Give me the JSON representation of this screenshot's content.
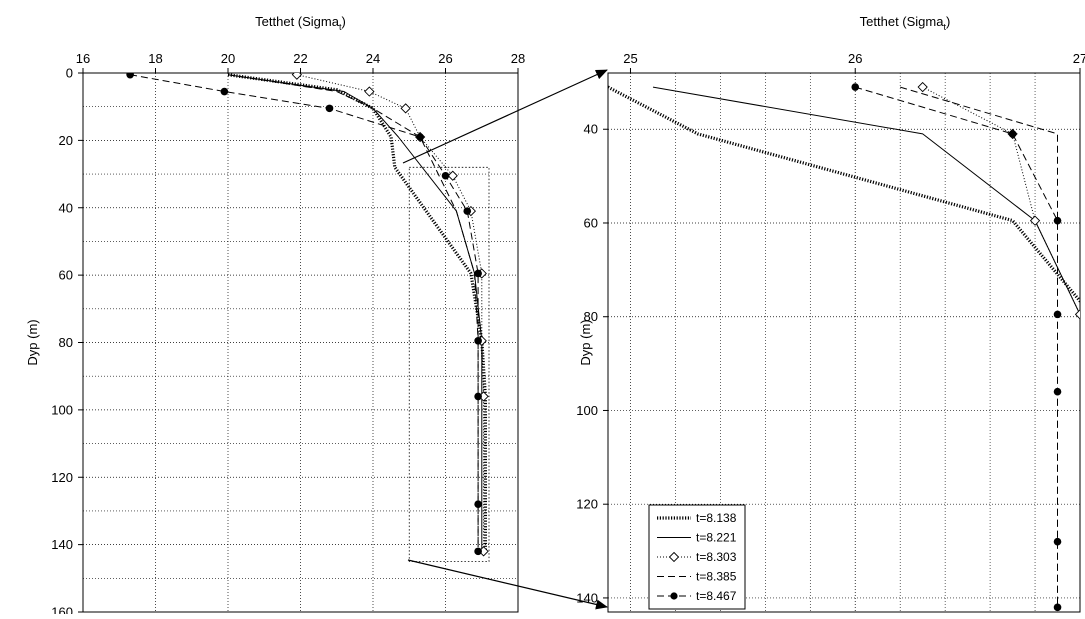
{
  "chart_data": [
    {
      "type": "line",
      "panel": "overview",
      "xlabel": "Tetthet (Sigma",
      "xlabel_sub": "t",
      "xlabel_close": ")",
      "ylabel": "Dyp (m)",
      "xlim": [
        16,
        28
      ],
      "ylim": [
        160,
        0
      ],
      "xticks": [
        16,
        18,
        20,
        22,
        24,
        26,
        28
      ],
      "yticks": [
        0,
        20,
        40,
        60,
        80,
        100,
        120,
        140,
        160
      ],
      "x_axis_position": "top",
      "grid": true,
      "series": [
        {
          "name": "t=8.138",
          "style": "thick-dotted",
          "x": [
            20.0,
            23.0,
            24.0,
            24.5,
            24.6,
            26.7,
            27.0,
            27.1,
            27.1,
            27.1
          ],
          "y": [
            0.5,
            5,
            10.5,
            19,
            28,
            59.5,
            79.5,
            96,
            128,
            142
          ]
        },
        {
          "name": "t=8.221",
          "style": "solid",
          "x": [
            20.0,
            23.2,
            24.0,
            24.7,
            26.3,
            26.8,
            27.0,
            27.0,
            27.0,
            27.0
          ],
          "y": [
            0.5,
            5.5,
            10.5,
            19,
            41,
            59.5,
            79.5,
            96,
            128,
            142
          ]
        },
        {
          "name": "t=8.303",
          "style": "dotted-diamond",
          "x": [
            21.9,
            23.9,
            24.9,
            25.3,
            26.2,
            26.7,
            27.0,
            27.0,
            27.05,
            27.05
          ],
          "y": [
            0.5,
            5.5,
            10.5,
            19,
            30.5,
            41,
            59.5,
            79.5,
            96,
            142
          ]
        },
        {
          "name": "t=8.385",
          "style": "dashed",
          "x": [
            20.0,
            23.0,
            24.0,
            25.3,
            26.3,
            26.8,
            26.9,
            26.9,
            26.9,
            26.9
          ],
          "y": [
            0.5,
            5.5,
            10.5,
            19,
            41,
            59.5,
            79.5,
            96,
            128,
            142
          ]
        },
        {
          "name": "t=8.467",
          "style": "dashed-dot",
          "x": [
            17.3,
            19.9,
            22.8,
            25.3,
            26.0,
            26.6,
            26.9,
            26.9,
            26.9,
            26.9,
            26.9
          ],
          "y": [
            0.5,
            5.5,
            10.5,
            19,
            30.5,
            41,
            59.5,
            79.5,
            96,
            128,
            142
          ]
        }
      ],
      "zoom_box": {
        "xlim": [
          25,
          27.2
        ],
        "ylim": [
          28,
          145
        ]
      }
    },
    {
      "type": "line",
      "panel": "zoom",
      "xlabel": "Tetthet (Sigma",
      "xlabel_sub": "t",
      "xlabel_close": ")",
      "ylabel": "Dyp (m)",
      "xlim": [
        24.9,
        27.0
      ],
      "ylim": [
        143,
        28
      ],
      "xticks": [
        25,
        26,
        27
      ],
      "yticks": [
        40,
        60,
        80,
        100,
        120,
        140
      ],
      "x_axis_position": "top",
      "grid": true,
      "legend": {
        "placement": "bottom-left",
        "entries": [
          "t=8.138",
          "t=8.221",
          "t=8.303",
          "t=8.385",
          "t=8.467"
        ]
      },
      "series": [
        {
          "name": "t=8.138",
          "style": "thick-dotted",
          "x": [
            24.9,
            25.3,
            26.7,
            27.05,
            27.07,
            27.1
          ],
          "y": [
            31,
            41,
            59.5,
            79.5,
            96,
            142
          ]
        },
        {
          "name": "t=8.221",
          "style": "solid",
          "x": [
            25.1,
            26.3,
            26.8,
            27.0,
            27.1,
            27.1
          ],
          "y": [
            31,
            41,
            59.5,
            79.5,
            96,
            142
          ]
        },
        {
          "name": "t=8.303",
          "style": "dotted-diamond",
          "x": [
            26.3,
            26.7,
            26.8,
            27.0,
            27.05,
            27.05,
            27.05
          ],
          "y": [
            31,
            41,
            59.5,
            79.5,
            96,
            128,
            142
          ]
        },
        {
          "name": "t=8.385",
          "style": "dashed",
          "x": [
            26.2,
            26.9,
            26.9,
            26.9,
            26.9,
            26.9
          ],
          "y": [
            31,
            41,
            59.5,
            79.5,
            96,
            142
          ]
        },
        {
          "name": "t=8.467",
          "style": "dashed-dot",
          "x": [
            26.0,
            26.7,
            26.9,
            26.9,
            26.9,
            26.9,
            26.9
          ],
          "y": [
            31,
            41,
            59.5,
            79.5,
            96,
            128,
            142
          ]
        }
      ]
    }
  ]
}
